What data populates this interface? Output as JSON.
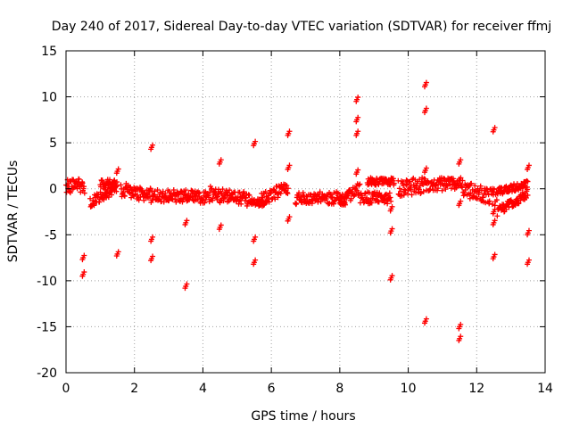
{
  "chart_data": {
    "type": "scatter",
    "title": "Day 240 of 2017, Sidereal Day-to-day VTEC variation (SDTVAR) for receiver ffmj",
    "xlabel": "GPS time / hours",
    "ylabel": "SDTVAR / TECUs",
    "xlim": [
      0,
      14
    ],
    "ylim": [
      -20,
      15
    ],
    "xticks": [
      0,
      2,
      4,
      6,
      8,
      10,
      12,
      14
    ],
    "yticks": [
      -20,
      -15,
      -10,
      -5,
      0,
      5,
      10,
      15
    ],
    "grid": true,
    "marker": "+",
    "color": "#ff0000",
    "band_segments": [
      {
        "x0": 0.0,
        "x1": 0.55,
        "y0": 0.3,
        "y1": 0.3,
        "spread": 0.8
      },
      {
        "x0": 0.7,
        "x1": 1.5,
        "y0": -1.5,
        "y1": 0.2,
        "spread": 0.6
      },
      {
        "x0": 1.0,
        "x1": 1.5,
        "y0": 0.5,
        "y1": 0.5,
        "spread": 0.5
      },
      {
        "x0": 1.6,
        "x1": 2.0,
        "y0": -0.2,
        "y1": -0.2,
        "spread": 0.8
      },
      {
        "x0": 2.0,
        "x1": 2.7,
        "y0": -0.5,
        "y1": -0.8,
        "spread": 0.8
      },
      {
        "x0": 2.7,
        "x1": 3.5,
        "y0": -0.8,
        "y1": -0.8,
        "spread": 0.7
      },
      {
        "x0": 3.5,
        "x1": 4.2,
        "y0": -0.8,
        "y1": -1.0,
        "spread": 0.7
      },
      {
        "x0": 4.2,
        "x1": 4.6,
        "y0": -0.5,
        "y1": -0.8,
        "spread": 0.8
      },
      {
        "x0": 4.6,
        "x1": 5.4,
        "y0": -0.7,
        "y1": -1.2,
        "spread": 0.8
      },
      {
        "x0": 5.4,
        "x1": 5.8,
        "y0": -1.5,
        "y1": -1.5,
        "spread": 0.4
      },
      {
        "x0": 5.7,
        "x1": 6.5,
        "y0": -1.2,
        "y1": 0.2,
        "spread": 0.7
      },
      {
        "x0": 6.7,
        "x1": 8.2,
        "y0": -1.0,
        "y1": -1.0,
        "spread": 0.7
      },
      {
        "x0": 8.0,
        "x1": 8.6,
        "y0": -1.5,
        "y1": 0.1,
        "spread": 0.7
      },
      {
        "x0": 8.6,
        "x1": 9.5,
        "y0": -1.0,
        "y1": -1.0,
        "spread": 0.7
      },
      {
        "x0": 8.8,
        "x1": 9.6,
        "y0": 0.8,
        "y1": 0.8,
        "spread": 0.4
      },
      {
        "x0": 9.7,
        "x1": 10.6,
        "y0": 0.0,
        "y1": 0.5,
        "spread": 0.9
      },
      {
        "x0": 10.6,
        "x1": 11.6,
        "y0": 0.5,
        "y1": 0.5,
        "spread": 0.7
      },
      {
        "x0": 11.6,
        "x1": 12.6,
        "y0": 0.0,
        "y1": -1.0,
        "spread": 0.9
      },
      {
        "x0": 12.6,
        "x1": 13.5,
        "y0": -2.5,
        "y1": -0.5,
        "spread": 0.5
      },
      {
        "x0": 12.6,
        "x1": 13.5,
        "y0": -0.3,
        "y1": 0.5,
        "spread": 0.4
      }
    ],
    "outliers": [
      {
        "x": 0.5,
        "y": -7.5
      },
      {
        "x": 0.5,
        "y": -9.3
      },
      {
        "x": 1.5,
        "y": -7.1
      },
      {
        "x": 1.5,
        "y": 1.9
      },
      {
        "x": 2.5,
        "y": 4.5
      },
      {
        "x": 2.5,
        "y": -5.5
      },
      {
        "x": 2.5,
        "y": -7.6
      },
      {
        "x": 3.5,
        "y": -3.7
      },
      {
        "x": 3.5,
        "y": -10.6
      },
      {
        "x": 4.5,
        "y": 2.9
      },
      {
        "x": 4.5,
        "y": -4.2
      },
      {
        "x": 5.5,
        "y": 4.9
      },
      {
        "x": 5.5,
        "y": -5.5
      },
      {
        "x": 5.5,
        "y": -8.0
      },
      {
        "x": 6.5,
        "y": 6.0
      },
      {
        "x": 6.5,
        "y": 2.3
      },
      {
        "x": 6.5,
        "y": -3.3
      },
      {
        "x": 8.5,
        "y": 9.7
      },
      {
        "x": 8.5,
        "y": 7.5
      },
      {
        "x": 8.5,
        "y": 6.0
      },
      {
        "x": 8.5,
        "y": 1.8
      },
      {
        "x": 9.5,
        "y": -2.2
      },
      {
        "x": 9.5,
        "y": -4.6
      },
      {
        "x": 9.5,
        "y": -9.7
      },
      {
        "x": 10.5,
        "y": 11.3
      },
      {
        "x": 10.5,
        "y": 8.5
      },
      {
        "x": 10.5,
        "y": 2.0
      },
      {
        "x": 10.5,
        "y": -14.4
      },
      {
        "x": 11.5,
        "y": 2.9
      },
      {
        "x": 11.5,
        "y": -1.6
      },
      {
        "x": 11.5,
        "y": -15.0
      },
      {
        "x": 11.5,
        "y": -16.3
      },
      {
        "x": 12.5,
        "y": 6.4
      },
      {
        "x": 12.5,
        "y": -2.5
      },
      {
        "x": 12.5,
        "y": -3.7
      },
      {
        "x": 12.5,
        "y": -7.4
      },
      {
        "x": 13.5,
        "y": 2.3
      },
      {
        "x": 13.5,
        "y": -4.8
      },
      {
        "x": 13.5,
        "y": -8.0
      }
    ]
  }
}
